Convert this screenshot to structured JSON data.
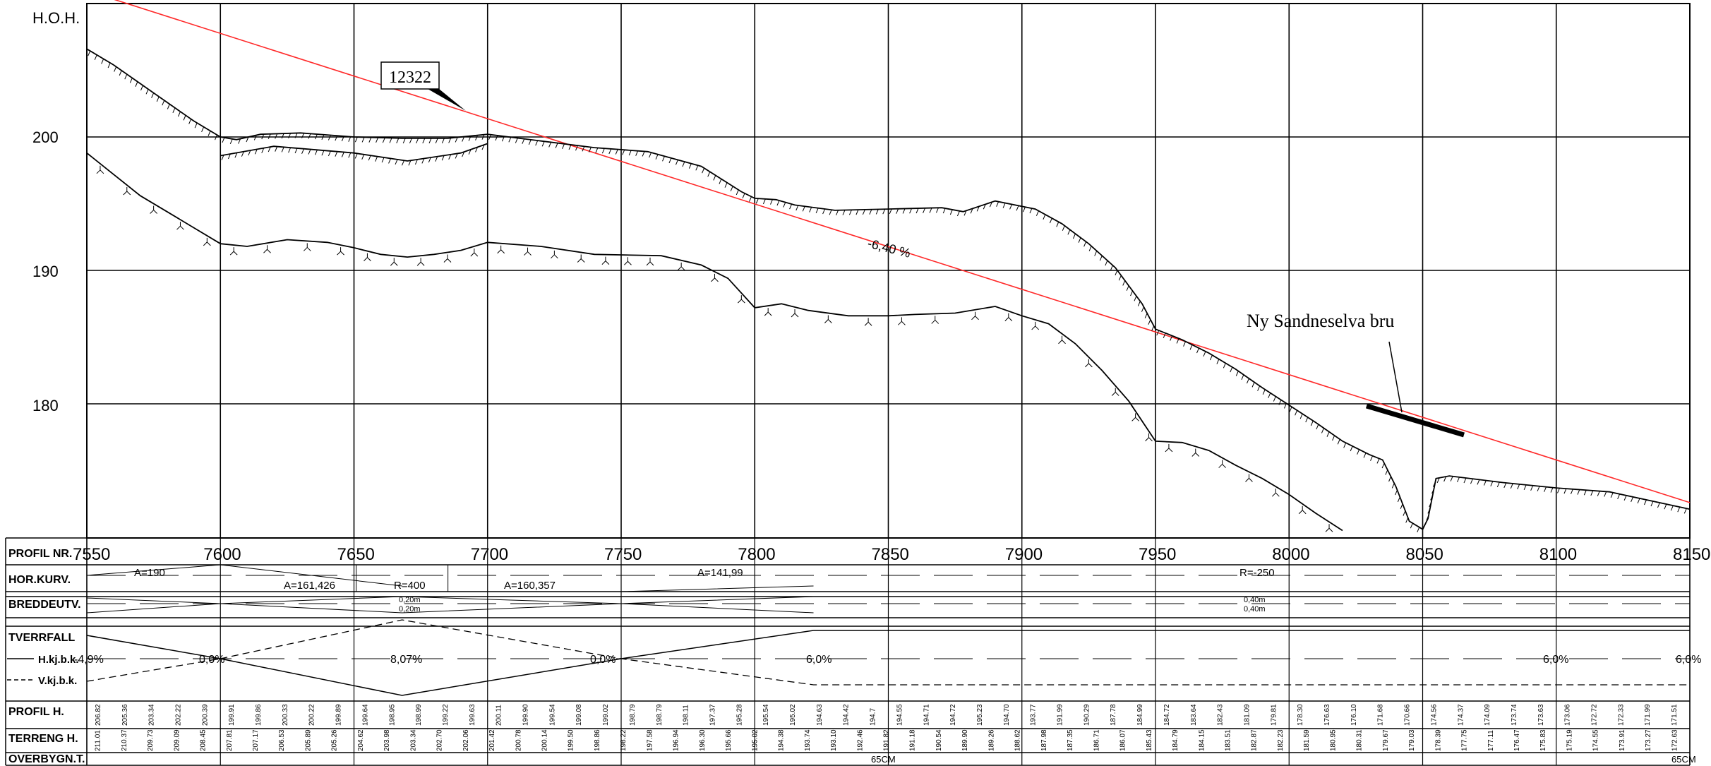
{
  "profile": {
    "hoh_label": "H.O.H.",
    "elevation_ticks": [
      "200",
      "190",
      "180"
    ],
    "station_ticks": [
      "7550",
      "7600",
      "7650",
      "7700",
      "7750",
      "7800",
      "7850",
      "7900",
      "7950",
      "8000",
      "8050",
      "8100",
      "8150"
    ],
    "callout_label": "12322",
    "grade_label": "-6,40 %",
    "bridge_label": "Ny Sandneselva bru"
  },
  "band": {
    "row_labels": {
      "profil_nr": "PROFIL NR.",
      "hor_kurv": "HOR.KURV.",
      "breddeutv": "BREDDEUTV.",
      "tverrfall": "TVERRFALL",
      "hkj": "H.kj.b.k.",
      "vkj": "V.kj.b.k.",
      "profil_h": "PROFIL H.",
      "terreng_h": "TERRENG H.",
      "overbygn": "OVERBYGN.T."
    },
    "hor_kurv": [
      "A=190",
      "A=161,426",
      "R=400",
      "A=160,357",
      "A=141,99",
      "R=-250"
    ],
    "breddeutv": [
      "0,20m",
      "0,20m",
      "0,40m",
      "0,40m"
    ],
    "tverrfall": [
      "-4,9%",
      "0,0%",
      "8,07%",
      "0,0%",
      "6,0%",
      "6,0%",
      "6,0%"
    ],
    "profil_h": [
      "206.82",
      "205.36",
      "203.34",
      "202.22",
      "200.39",
      "199.91",
      "199.86",
      "200.33",
      "200.22",
      "199.89",
      "199.64",
      "198.95",
      "198.99",
      "199.22",
      "199.63",
      "200.11",
      "199.90",
      "199.54",
      "199.08",
      "199.02",
      "198.79",
      "198.79",
      "198.11",
      "197.37",
      "195.28",
      "195.54",
      "195.02",
      "194.63",
      "194.42",
      "194.7",
      "194.55",
      "194.71",
      "194.72",
      "195.23",
      "194.70",
      "193.77",
      "191.99",
      "190.29",
      "187.78",
      "184.99",
      "184.72",
      "183.64",
      "182.43",
      "181.09",
      "179.81",
      "178.30",
      "176.63",
      "176.10",
      "171.68",
      "170.66",
      "174.56",
      "174.37",
      "174.09",
      "173.74",
      "173.63",
      "173.06",
      "172.72",
      "172.33",
      "171.99",
      "171.51"
    ],
    "terreng_h": [
      "211.01",
      "210.37",
      "209.73",
      "209.09",
      "208.45",
      "207.81",
      "207.17",
      "206.53",
      "205.89",
      "205.26",
      "204.62",
      "203.98",
      "203.34",
      "202.70",
      "202.06",
      "201.42",
      "200.78",
      "200.14",
      "199.50",
      "198.86",
      "198.22",
      "197.58",
      "196.94",
      "196.30",
      "195.66",
      "195.02",
      "194.38",
      "193.74",
      "193.10",
      "192.46",
      "191.82",
      "191.18",
      "190.54",
      "189.90",
      "189.26",
      "188.62",
      "187.98",
      "187.35",
      "186.71",
      "186.07",
      "185.43",
      "184.79",
      "184.15",
      "183.51",
      "182.87",
      "182.23",
      "181.59",
      "180.95",
      "180.31",
      "179.67",
      "179.03",
      "178.39",
      "177.75",
      "177.11",
      "176.47",
      "175.83",
      "175.19",
      "174.55",
      "173.91",
      "173.27",
      "172.63"
    ],
    "overbygn": [
      "65CM",
      "65CM"
    ]
  },
  "chart_data": {
    "type": "line",
    "xlim": [
      7550,
      8150
    ],
    "ylim": [
      170,
      210
    ],
    "x_ticks": [
      7550,
      7600,
      7650,
      7700,
      7750,
      7800,
      7850,
      7900,
      7950,
      8000,
      8050,
      8100,
      8150
    ],
    "y_ticks": [
      180,
      190,
      200
    ],
    "ylabel": "H.O.H.",
    "series": [
      {
        "points": [
          [
            7540,
            211.6
          ],
          [
            8150,
            172.6
          ]
        ]
      },
      {
        "points": [
          [
            7550,
            206.6
          ],
          [
            7560,
            205.4
          ],
          [
            7570,
            204
          ],
          [
            7580,
            202.6
          ],
          [
            7590,
            201.2
          ],
          [
            7600,
            200
          ],
          [
            7606,
            199.8
          ],
          [
            7615,
            200.2
          ],
          [
            7630,
            200.3
          ],
          [
            7650,
            200
          ],
          [
            7668,
            199.9
          ],
          [
            7685,
            199.9
          ],
          [
            7700,
            200.2
          ],
          [
            7720,
            199.7
          ],
          [
            7740,
            199.2
          ],
          [
            7760,
            198.9
          ],
          [
            7780,
            197.8
          ],
          [
            7795,
            195.9
          ],
          [
            7800,
            195.4
          ],
          [
            7808,
            195.3
          ],
          [
            7815,
            194.9
          ],
          [
            7830,
            194.5
          ],
          [
            7850,
            194.6
          ],
          [
            7870,
            194.7
          ],
          [
            7878,
            194.4
          ],
          [
            7890,
            195.2
          ],
          [
            7905,
            194.6
          ],
          [
            7915,
            193.5
          ],
          [
            7925,
            192
          ],
          [
            7935,
            190.2
          ],
          [
            7945,
            187.5
          ],
          [
            7950,
            185.6
          ],
          [
            7960,
            184.8
          ],
          [
            7970,
            183.8
          ],
          [
            7980,
            182.6
          ],
          [
            7990,
            181.2
          ],
          [
            8000,
            179.9
          ],
          [
            8010,
            178.6
          ],
          [
            8020,
            177.2
          ],
          [
            8030,
            176.2
          ],
          [
            8035,
            175.8
          ],
          [
            8040,
            173.8
          ],
          [
            8045,
            171.2
          ],
          [
            8050,
            170.6
          ],
          [
            8052,
            171.4
          ],
          [
            8055,
            174.4
          ],
          [
            8060,
            174.6
          ],
          [
            8080,
            174.1
          ],
          [
            8100,
            173.7
          ],
          [
            8120,
            173.4
          ],
          [
            8150,
            172.1
          ]
        ]
      },
      {
        "points": [
          [
            7550,
            198.8
          ],
          [
            7560,
            197.2
          ],
          [
            7570,
            195.6
          ],
          [
            7580,
            194.4
          ],
          [
            7590,
            193.2
          ],
          [
            7600,
            192
          ],
          [
            7610,
            191.8
          ],
          [
            7625,
            192.3
          ],
          [
            7640,
            192.1
          ],
          [
            7650,
            191.7
          ],
          [
            7660,
            191.2
          ],
          [
            7670,
            191
          ],
          [
            7680,
            191.2
          ],
          [
            7690,
            191.5
          ],
          [
            7700,
            192.1
          ],
          [
            7720,
            191.8
          ],
          [
            7740,
            191.2
          ],
          [
            7765,
            191.1
          ],
          [
            7780,
            190.4
          ],
          [
            7790,
            189.4
          ],
          [
            7800,
            187.2
          ],
          [
            7810,
            187.5
          ],
          [
            7820,
            187
          ],
          [
            7835,
            186.6
          ],
          [
            7850,
            186.6
          ],
          [
            7860,
            186.7
          ],
          [
            7875,
            186.8
          ],
          [
            7890,
            187.3
          ],
          [
            7900,
            186.6
          ],
          [
            7910,
            186
          ],
          [
            7920,
            184.5
          ],
          [
            7930,
            182.5
          ],
          [
            7940,
            180.2
          ],
          [
            7950,
            177.2
          ],
          [
            7960,
            177.1
          ],
          [
            7970,
            176.5
          ],
          [
            7980,
            175.4
          ],
          [
            7990,
            174.4
          ],
          [
            8000,
            173.2
          ],
          [
            8010,
            171.8
          ],
          [
            8020,
            170.5
          ]
        ]
      },
      {
        "points": [
          [
            7600,
            198.6
          ],
          [
            7620,
            199.3
          ],
          [
            7650,
            198.8
          ],
          [
            7670,
            198.2
          ],
          [
            7690,
            198.8
          ],
          [
            7700,
            199.5
          ]
        ]
      }
    ]
  }
}
